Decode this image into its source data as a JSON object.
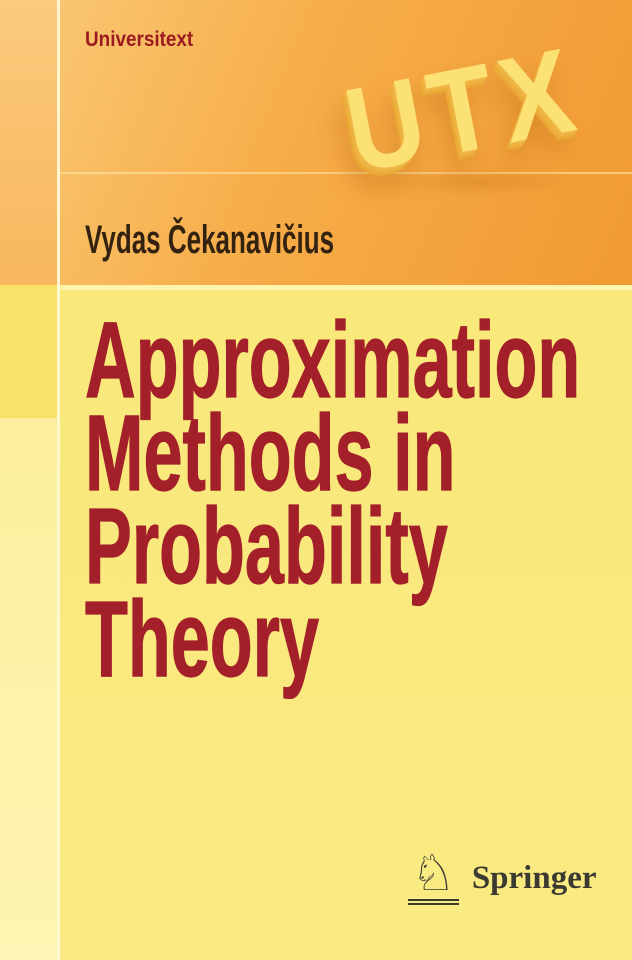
{
  "cover": {
    "series_label": "Universitext",
    "utx_logo_text": "UTX",
    "author": "Vydas Čekanavičius",
    "title_lines": [
      "Approximation",
      "Methods in",
      "Probability",
      "Theory"
    ],
    "publisher": {
      "name": "Springer",
      "knight_glyph": "♘"
    },
    "colors": {
      "orange_band_light": "#FACB79",
      "orange_band_deep": "#F09A31",
      "rail_orange_top": "#FBCA7D",
      "rail_orange_bottom": "#F8B65E",
      "main_yellow": "#F9E87B",
      "rail_yellow_dark": "#F8E268",
      "rail_yellow_pale": "#FDF2A4",
      "vertical_divider": "#FFFBDC",
      "series_red": "#9B1B21",
      "title_red": "#A3202B",
      "author_brown": "#342210",
      "utx_yellow": "#FDE273",
      "publisher_gray": "#3B3A30"
    }
  }
}
